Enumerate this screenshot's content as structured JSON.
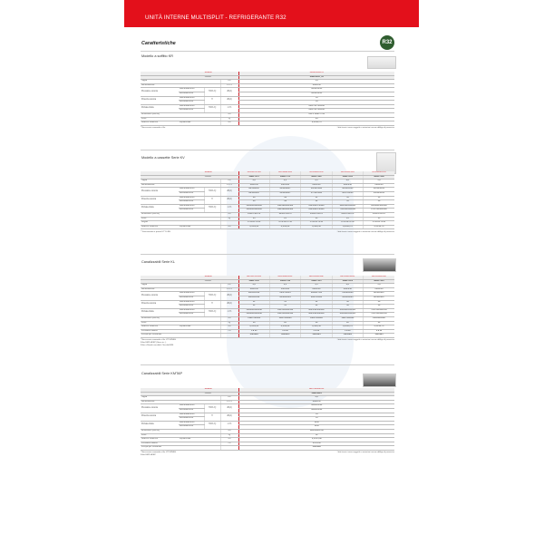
{
  "header": {
    "title": "UNITÀ INTERNE MULTISPLIT - REFRIGERANTE R32",
    "badge": "R32"
  },
  "page_title": "Caratteristiche",
  "disclaimer": "I dati tecnici sono soggetti a variazioni senza obbligo di preavviso",
  "labels": {
    "model": "Modello",
    "code": "Codice*",
    "cool": "Raffreddamento",
    "heat": "Riscaldamento"
  },
  "sections": [
    {
      "title": "Modello a soffitto KR",
      "models": [
        "ABGG18KRTA"
      ],
      "codes": [
        "3NGF8005_13"
      ],
      "rows": [
        {
          "label": "Taglia",
          "unit": "kW",
          "values": [
            "5,0"
          ]
        },
        {
          "label": "Alimentazione",
          "unit": "V/f/Hz",
          "values": [
            "230/1/50"
          ]
        },
        {
          "label": "Pressione sonora",
          "mid": "H/M/L/Q",
          "unit": "dB(A)",
          "cool": [
            "36/38/33/31"
          ],
          "heat": [
            "36/38/33/31"
          ]
        },
        {
          "label": "Potenza sonora",
          "mid": "H",
          "unit": "dB(A)",
          "cool": [
            "53"
          ],
          "heat": [
            "53"
          ]
        },
        {
          "label": "Portata d'aria",
          "mid": "H/M/L/Q",
          "unit": "m³/h",
          "cool": [
            "840/750/710/650"
          ],
          "heat": [
            "840/750/710/650"
          ]
        },
        {
          "label": "Dimensioni (AxLxP)",
          "unit": "mm",
          "values": [
            "230 x 1068 x 700"
          ]
        },
        {
          "label": "Peso",
          "unit": "kg",
          "values": [
            "24"
          ]
        },
        {
          "label": "Attacchi tubazioni",
          "mid": "Liquido/Gas",
          "unit": "mm",
          "values": [
            "6,35/12,70"
          ]
        }
      ],
      "footnotes": [
        "* Necessario comando a filo"
      ]
    },
    {
      "title": "Modello a cassette Serie KV",
      "models": [
        "AUXG07KVLA",
        "AUXG09KVLA",
        "AUXG12KVLA",
        "AUXG14KVLA",
        "AUXG18KVLA"
      ],
      "codes": [
        "3NGF7170",
        "3NGF7175",
        "3NGF7180",
        "3NGF7185",
        "3NGF7190"
      ],
      "rows": [
        {
          "label": "Taglia",
          "unit": "kW",
          "values": [
            "2,0",
            "2,5",
            "3,5",
            "4,0",
            "5,0"
          ]
        },
        {
          "label": "Alimentazione",
          "unit": "V/f/Hz",
          "values": [
            "230/1/50",
            "230/1/50",
            "230/1/50",
            "230/1/50",
            "230/1/50"
          ]
        },
        {
          "label": "Pressione sonora",
          "mid": "H/M/L/Q",
          "unit": "dB(A)",
          "cool": [
            "33/31/28/27",
            "34/32/29/27",
            "36/34/31/28",
            "38/36/33/30",
            "41/39/36/33"
          ],
          "heat": [
            "34/32/29/27",
            "34/32/29/27",
            "37/34/31/28",
            "40/37/34/30",
            "43/39/36/33"
          ]
        },
        {
          "label": "Potenza sonora",
          "mid": "H",
          "unit": "dB(A)",
          "cool": [
            "48",
            "49",
            "51",
            "53",
            "56"
          ],
          "heat": [
            "48",
            "49",
            "52",
            "55",
            "58"
          ]
        },
        {
          "label": "Portata d'aria",
          "mid": "H/M/L/Q",
          "unit": "m³/h",
          "cool": [
            "540/490/440/400",
            "540/490/440/400",
            "610/540/470/420",
            "690/610/530/460",
            "800/690/580/490"
          ],
          "heat": [
            "540/490/440/400",
            "540/490/440/400",
            "610/540/470/420",
            "750/650/560/490",
            "870/730/600/490"
          ]
        },
        {
          "label": "Dimensioni (AxLxP)",
          "unit": "mm",
          "values": [
            "245x570x570",
            "245x570x570",
            "245x570x570",
            "245x570x570",
            "245x570x570"
          ]
        },
        {
          "label": "Peso",
          "unit": "kg",
          "values": [
            "15",
            "15",
            "15",
            "15",
            "15"
          ]
        },
        {
          "label": "Griglia",
          "unit": "",
          "values": [
            "UTG-UFYF-W",
            "UTG-UFYF-W",
            "UTG-UFYF-W",
            "UTG-UFYF-W",
            "UTG-UFYF-W"
          ]
        },
        {
          "label": "Attacchi tubazioni",
          "mid": "Liquido/Gas",
          "unit": "mm",
          "values": [
            "6,35/9,52",
            "6,35/9,52",
            "6,35/9,52",
            "6,35/12,70",
            "6,35/12,70"
          ]
        }
      ],
      "footnotes": [
        "* Telecomando a parete UTY-LRH"
      ]
    },
    {
      "title": "Canalizzabili Serie KL",
      "models": [
        "ARXG07KLLAP",
        "ARXG09KLLAP",
        "ARXG12KLLAP",
        "ARXG14KLLAP",
        "ARXG18KLLAP"
      ],
      "codes": [
        "3NGF7105",
        "3NGF7110",
        "3NGF7115",
        "3NGF7120",
        "3NGF7125"
      ],
      "rows": [
        {
          "label": "Taglia",
          "unit": "kW",
          "values": [
            "2,0",
            "2,5",
            "3,5",
            "4,0",
            "5,0"
          ]
        },
        {
          "label": "Alimentazione",
          "unit": "V/f/Hz",
          "values": [
            "230/1/50",
            "230/1/50",
            "230/1/50",
            "230/1/50",
            "230/1/50"
          ]
        },
        {
          "label": "Pressione sonora",
          "mid": "H/M/L/Q",
          "unit": "dB(A)",
          "cool": [
            "28/26/25/24",
            "29/27/26/25",
            "29/28/27/26",
            "31/29/28/26",
            "32/30/29/27"
          ],
          "heat": [
            "28/26/25/24",
            "28/26/25/24",
            "29/27/26/24",
            "32/30/28/25",
            "32/30/29/27"
          ]
        },
        {
          "label": "Potenza sonora",
          "mid": "H",
          "unit": "dB(A)",
          "cool": [
            "51",
            "51",
            "54",
            "56",
            "58"
          ],
          "heat": [
            "51",
            "51",
            "54",
            "56",
            "58"
          ]
        },
        {
          "label": "Portata d'aria",
          "mid": "H/M/L/Q",
          "unit": "m³/h",
          "cool": [
            "530/490/450/440",
            "550/510/460/410",
            "600/550/500/460",
            "650/600/550/500",
            "780/700/620/550"
          ],
          "heat": [
            "530/490/450/440",
            "550/510/460/410",
            "600/550/500/460",
            "650/600/550/500",
            "780/700/620/550"
          ]
        },
        {
          "label": "Dimensioni (AxLxP)",
          "unit": "mm",
          "values": [
            "198x700x620",
            "198x700x620",
            "198x700x620",
            "198x700x620",
            "198x900x620"
          ]
        },
        {
          "label": "Peso",
          "unit": "kg",
          "values": [
            "18",
            "18",
            "18",
            "18",
            "20"
          ]
        },
        {
          "label": "Attacchi tubazioni",
          "mid": "Liquido/Gas",
          "unit": "mm",
          "values": [
            "6,35/9,52",
            "6,35/9,52",
            "6,35/9,52",
            "6,35/12,70",
            "6,35/12,70"
          ]
        },
        {
          "label": "Pressione statica",
          "unit": "Pa",
          "values": [
            "0 a 90",
            "0 a 90",
            "0 a 90",
            "0 a 90",
            "0 a 90"
          ]
        },
        {
          "label": "Pompa per condensa",
          "unit": "",
          "values": [
            "Standard",
            "Standard",
            "Standard",
            "Standard",
            "Standard"
          ]
        }
      ],
      "footnotes": [
        "* Necessario comando a filo UTY-RNRG",
        "Filtro EMZ-HKEP (Stero to...)",
        "Filtro a Banda sensibile ClassificEMS"
      ]
    },
    {
      "title": "Canalizzabili Serie KMTAP",
      "models": [
        "ARXH24GBTAP"
      ],
      "codes": [
        "3NGF8020"
      ],
      "rows": [
        {
          "label": "Taglia",
          "unit": "kW",
          "values": [
            "6,0"
          ]
        },
        {
          "label": "Alimentazione",
          "unit": "V/f/Hz",
          "values": [
            "230/1/50"
          ]
        },
        {
          "label": "Pressione sonora",
          "mid": "H/M/L/Q",
          "unit": "dB(A)",
          "cool": [
            "32/28/25/24"
          ],
          "heat": [
            "32/28/25/24"
          ]
        },
        {
          "label": "Potenza sonora",
          "mid": "H",
          "unit": "dB(A)",
          "cool": [
            "54"
          ],
          "heat": [
            "55"
          ]
        },
        {
          "label": "Portata d'aria",
          "mid": "H/M/L/Q",
          "unit": "m³/h",
          "cool": [
            "1150"
          ],
          "heat": [
            "1150"
          ]
        },
        {
          "label": "Dimensioni (AxLxP)",
          "unit": "mm",
          "values": [
            "198x1000x700"
          ]
        },
        {
          "label": "Peso",
          "unit": "kg",
          "values": [
            "31"
          ]
        },
        {
          "label": "Attacchi tubazioni",
          "mid": "Liquido/Gas",
          "unit": "mm",
          "values": [
            "6,35/15,88"
          ]
        },
        {
          "label": "Pressione statica",
          "unit": "Pa",
          "values": [
            "30 a 150"
          ]
        },
        {
          "label": "Pompa per condensa",
          "unit": "",
          "values": [
            "Standard"
          ]
        }
      ],
      "footnotes": [
        "* Necessario comando a filo UTY-RNRG",
        "Filtro EMZ-HKEP"
      ]
    }
  ]
}
